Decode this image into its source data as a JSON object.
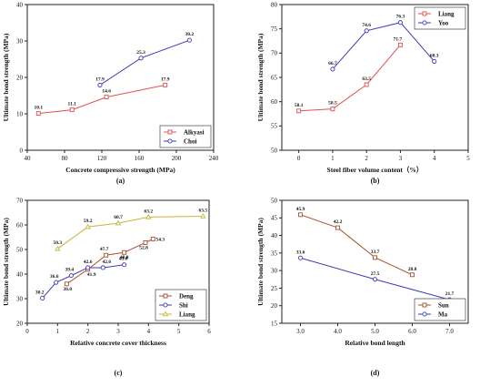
{
  "chart_data": [
    {
      "type": "line",
      "caption": "(a)",
      "xlabel": "Concrete compressive strength (MPa)",
      "ylabel": "Ultimate bond strength (MPa)",
      "xlim": [
        40,
        240
      ],
      "ylim": [
        0,
        40
      ],
      "xticks": [
        "40",
        "80",
        "120",
        "160",
        "200",
        "240"
      ],
      "yticks": [
        "0",
        "10",
        "20",
        "30",
        "40"
      ],
      "legend_position": "bottom-right",
      "series": [
        {
          "name": "Alkyasi",
          "color": "#e05050",
          "marker": "square",
          "x": [
            52,
            88,
            125,
            188
          ],
          "y": [
            10.1,
            11.1,
            14.6,
            17.9
          ],
          "labels": [
            "10.1",
            "11.1",
            "14.6",
            "17.9"
          ]
        },
        {
          "name": "Choi",
          "color": "#3a3ab8",
          "marker": "circle",
          "x": [
            118,
            162,
            214
          ],
          "y": [
            17.9,
            25.3,
            30.2
          ],
          "labels": [
            "17.9",
            "25.3",
            "30.2"
          ]
        }
      ]
    },
    {
      "type": "line",
      "caption": "(b)",
      "xlabel": "Steel fiber volume content（%）",
      "ylabel": "Ultimate bond strength (MPa)",
      "xlim": [
        -0.5,
        5
      ],
      "ylim": [
        50,
        80
      ],
      "xticks": [
        "0",
        "1",
        "2",
        "3",
        "4",
        "5"
      ],
      "yticks": [
        "50",
        "55",
        "60",
        "65",
        "70",
        "75",
        "80"
      ],
      "legend_position": "top-right",
      "series": [
        {
          "name": "Liang",
          "color": "#e05050",
          "marker": "square",
          "x": [
            0,
            1,
            2,
            3
          ],
          "y": [
            58.1,
            58.5,
            63.5,
            71.7
          ],
          "labels": [
            "58.1",
            "58.5",
            "63.5",
            "71.7"
          ]
        },
        {
          "name": "Yoo",
          "color": "#3a3ab8",
          "marker": "circle",
          "x": [
            1,
            2,
            3,
            4
          ],
          "y": [
            66.7,
            74.6,
            76.3,
            68.3
          ],
          "labels": [
            "66.7",
            "74.6",
            "76.3",
            "68.3"
          ]
        }
      ]
    },
    {
      "type": "line",
      "caption": "(c)",
      "xlabel": "Relative concrete cover thickness",
      "ylabel": "Ultimate bond strength (MPa)",
      "xlim": [
        0,
        6
      ],
      "ylim": [
        20,
        70
      ],
      "xticks": [
        "0",
        "1",
        "2",
        "3",
        "4",
        "5",
        "6"
      ],
      "yticks": [
        "20",
        "30",
        "40",
        "50",
        "60",
        "70"
      ],
      "legend_position": "bottom-right",
      "series": [
        {
          "name": "Deng",
          "color": "#a0522d",
          "marker": "square",
          "x": [
            1.3,
            2.0,
            2.6,
            3.2,
            3.9,
            4.15
          ],
          "y": [
            36.0,
            41.9,
            47.7,
            48.8,
            52.8,
            54.3
          ],
          "labels": [
            "36.0",
            "41.9",
            "47.7",
            "48.8",
            "52.8",
            "54.3"
          ]
        },
        {
          "name": "Shi",
          "color": "#3a3ab8",
          "marker": "circle",
          "x": [
            0.5,
            0.95,
            1.45,
            2.0,
            2.5,
            3.2
          ],
          "y": [
            30.2,
            36.6,
            39.4,
            42.6,
            42.6,
            43.8
          ],
          "labels": [
            "30.2",
            "36.6",
            "39.4",
            "42.6",
            "42.6",
            "43.8"
          ]
        },
        {
          "name": "Liang",
          "color": "#c9b43a",
          "marker": "triangle",
          "x": [
            1.0,
            2.0,
            3.0,
            4.0,
            5.8
          ],
          "y": [
            50.3,
            59.2,
            60.7,
            63.2,
            63.5
          ],
          "labels": [
            "50.3",
            "59.2",
            "60.7",
            "63.2",
            "63.5"
          ]
        }
      ]
    },
    {
      "type": "line",
      "caption": "(d)",
      "xlabel": "Relative bond length",
      "ylabel": "Ultimate bond strength (MPa)",
      "xlim": [
        2.5,
        7.5
      ],
      "ylim": [
        15,
        50
      ],
      "xticks": [
        "3.0",
        "4.0",
        "5.0",
        "6.0",
        "7.0"
      ],
      "yticks": [
        "15",
        "20",
        "25",
        "30",
        "35",
        "40",
        "45",
        "50"
      ],
      "legend_position": "bottom-right",
      "series": [
        {
          "name": "Sun",
          "color": "#a0522d",
          "marker": "square",
          "x": [
            3,
            4,
            5,
            6
          ],
          "y": [
            45.9,
            42.2,
            33.7,
            28.8
          ],
          "labels": [
            "45.9",
            "42.2",
            "33.7",
            "28.8"
          ]
        },
        {
          "name": "Ma",
          "color": "#3a3ab8",
          "marker": "circle",
          "x": [
            3,
            5,
            7
          ],
          "y": [
            33.6,
            27.5,
            21.7
          ],
          "labels": [
            "33.6",
            "27.5",
            "21.7"
          ]
        }
      ]
    }
  ]
}
